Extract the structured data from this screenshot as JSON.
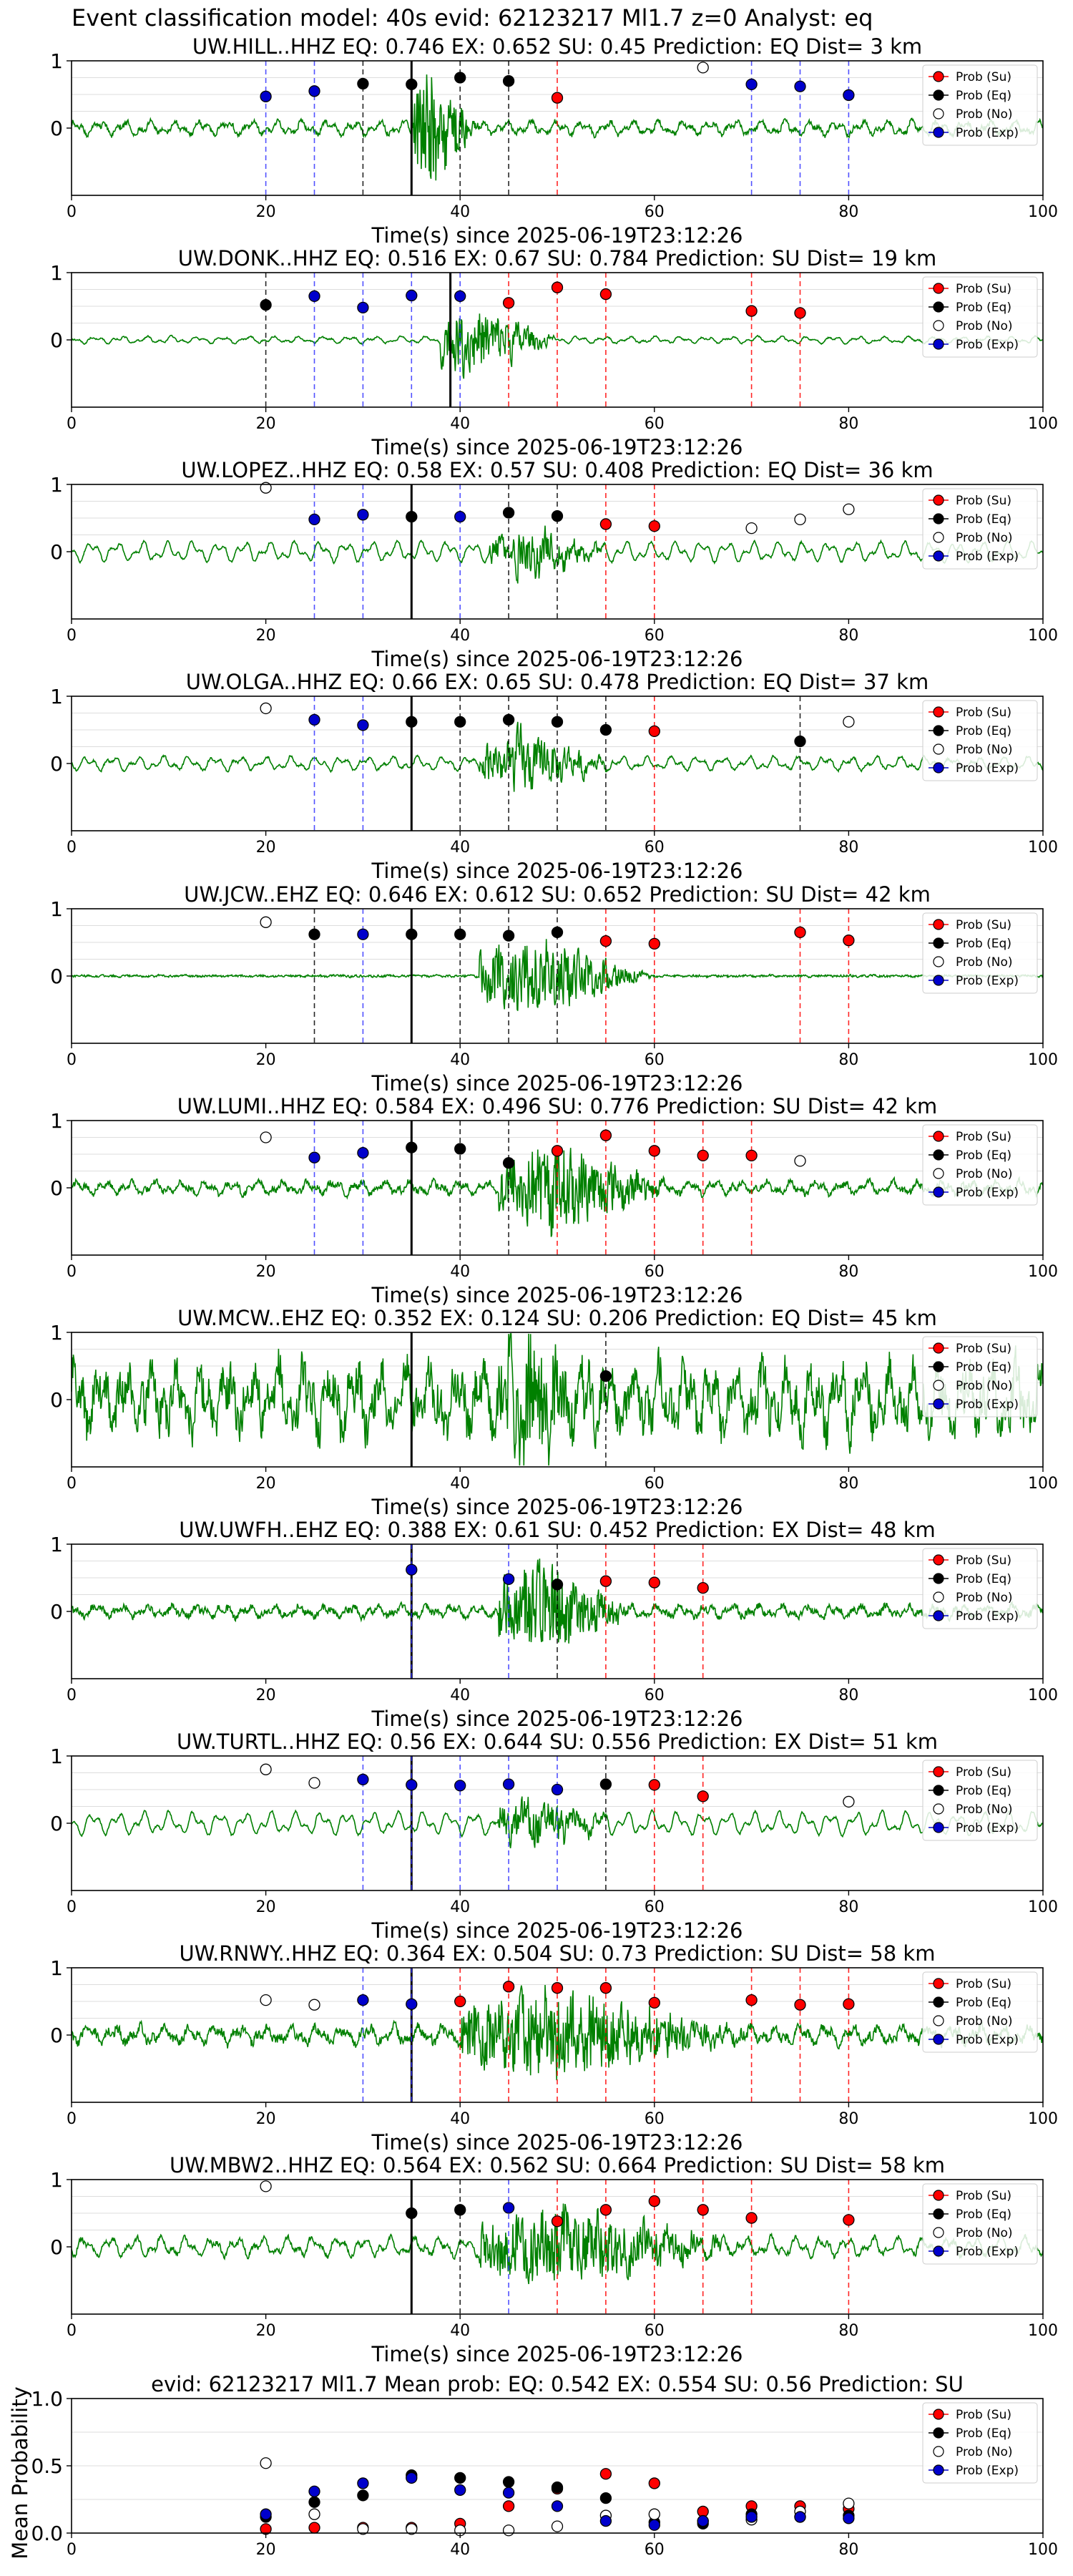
{
  "suptitle": "Event classification model: 40s evid: 62123217 Ml1.7 z=0 Analyst: eq",
  "legend_labels": [
    "Prob (Su)",
    "Prob (Eq)",
    "Prob (No)",
    "Prob (Exp)"
  ],
  "colors": {
    "su": "#ff0000",
    "eq": "#000000",
    "no": "#ffffff",
    "exp": "#0000cc",
    "trace": "#008000"
  },
  "chart_data": [
    {
      "type": "scatter",
      "title": "UW.HILL..HHZ   EQ: 0.746   EX: 0.652   SU: 0.45   Prediction: EQ    Dist= 3 km",
      "xlabel": "Time(s) since 2025-06-19T23:12:26",
      "xlim": [
        0,
        100
      ],
      "ylim": [
        -1,
        1
      ],
      "xticks": [
        0,
        20,
        40,
        60,
        80,
        100
      ],
      "yticks": [
        0,
        1
      ],
      "trace": {
        "amp": 0.12,
        "burst": [
          35,
          42
        ],
        "burst_amp": 0.95,
        "noise": 0.04,
        "smooth": 0.2,
        "seed": 1
      },
      "arrival": 35,
      "series": [
        {
          "name": "Prob (Su)",
          "x": [
            50
          ],
          "y": [
            0.45
          ]
        },
        {
          "name": "Prob (Eq)",
          "x": [
            30,
            35,
            40,
            45
          ],
          "y": [
            0.66,
            0.65,
            0.75,
            0.7
          ]
        },
        {
          "name": "Prob (No)",
          "x": [
            65
          ],
          "y": [
            0.9
          ]
        },
        {
          "name": "Prob (Exp)",
          "x": [
            20,
            25,
            70,
            75,
            80
          ],
          "y": [
            0.47,
            0.55,
            0.65,
            0.62,
            0.49
          ]
        }
      ]
    },
    {
      "type": "scatter",
      "title": "UW.DONK..HHZ   EQ: 0.516   EX: 0.67   SU: 0.784   Prediction: SU    Dist= 19 km",
      "xlabel": "Time(s) since 2025-06-19T23:12:26",
      "xlim": [
        0,
        100
      ],
      "ylim": [
        -1,
        1
      ],
      "xticks": [
        0,
        20,
        40,
        60,
        80,
        100
      ],
      "yticks": [
        0,
        1
      ],
      "trace": {
        "amp": 0.08,
        "burst": [
          38,
          50
        ],
        "burst_amp": 0.85,
        "noise": 0.02,
        "smooth": 0.9,
        "seed": 2
      },
      "arrival": 39,
      "series": [
        {
          "name": "Prob (Su)",
          "x": [
            45,
            50,
            55,
            70,
            75
          ],
          "y": [
            0.55,
            0.78,
            0.68,
            0.43,
            0.4
          ]
        },
        {
          "name": "Prob (Eq)",
          "x": [
            20
          ],
          "y": [
            0.52
          ]
        },
        {
          "name": "Prob (No)",
          "x": [],
          "y": []
        },
        {
          "name": "Prob (Exp)",
          "x": [
            25,
            30,
            35,
            40
          ],
          "y": [
            0.65,
            0.48,
            0.66,
            0.65
          ]
        }
      ]
    },
    {
      "type": "scatter",
      "title": "UW.LOPEZ..HHZ   EQ: 0.58   EX: 0.57   SU: 0.408   Prediction: EQ    Dist= 36 km",
      "xlabel": "Time(s) since 2025-06-19T23:12:26",
      "xlim": [
        0,
        100
      ],
      "ylim": [
        -1,
        1
      ],
      "xticks": [
        0,
        20,
        40,
        60,
        80,
        100
      ],
      "yticks": [
        0,
        1
      ],
      "trace": {
        "amp": 0.22,
        "burst": [
          43,
          56
        ],
        "burst_amp": 0.55,
        "noise": 0.03,
        "smooth": 0.85,
        "seed": 3
      },
      "arrival": 35,
      "series": [
        {
          "name": "Prob (Su)",
          "x": [
            55,
            60
          ],
          "y": [
            0.41,
            0.38
          ]
        },
        {
          "name": "Prob (Eq)",
          "x": [
            35,
            45,
            50
          ],
          "y": [
            0.52,
            0.58,
            0.53
          ]
        },
        {
          "name": "Prob (No)",
          "x": [
            20,
            70,
            75,
            80
          ],
          "y": [
            0.95,
            0.35,
            0.48,
            0.63
          ]
        },
        {
          "name": "Prob (Exp)",
          "x": [
            25,
            30,
            40
          ],
          "y": [
            0.48,
            0.55,
            0.52
          ]
        }
      ]
    },
    {
      "type": "scatter",
      "title": "UW.OLGA..HHZ   EQ: 0.66   EX: 0.65   SU: 0.478   Prediction: EQ    Dist= 37 km",
      "xlabel": "Time(s) since 2025-06-19T23:12:26",
      "xlim": [
        0,
        100
      ],
      "ylim": [
        -1,
        1
      ],
      "xticks": [
        0,
        20,
        40,
        60,
        80,
        100
      ],
      "yticks": [
        0,
        1
      ],
      "trace": {
        "amp": 0.15,
        "burst": [
          42,
          56
        ],
        "burst_amp": 0.65,
        "noise": 0.03,
        "smooth": 0.8,
        "seed": 4
      },
      "arrival": 35,
      "series": [
        {
          "name": "Prob (Su)",
          "x": [
            60
          ],
          "y": [
            0.48
          ]
        },
        {
          "name": "Prob (Eq)",
          "x": [
            35,
            40,
            45,
            50,
            55,
            75
          ],
          "y": [
            0.62,
            0.62,
            0.65,
            0.62,
            0.5,
            0.33
          ]
        },
        {
          "name": "Prob (No)",
          "x": [
            20,
            80
          ],
          "y": [
            0.82,
            0.62
          ]
        },
        {
          "name": "Prob (Exp)",
          "x": [
            25,
            30
          ],
          "y": [
            0.65,
            0.57
          ]
        }
      ]
    },
    {
      "type": "scatter",
      "title": "UW.JCW..EHZ   EQ: 0.646   EX: 0.612   SU: 0.652   Prediction: SU    Dist= 42 km",
      "xlabel": "Time(s) since 2025-06-19T23:12:26",
      "xlim": [
        0,
        100
      ],
      "ylim": [
        -1,
        1
      ],
      "xticks": [
        0,
        20,
        40,
        60,
        80,
        100
      ],
      "yticks": [
        0,
        1
      ],
      "trace": {
        "amp": 0.01,
        "burst": [
          42,
          60
        ],
        "burst_amp": 0.75,
        "noise": 0.02,
        "smooth": 0.5,
        "seed": 5
      },
      "arrival": 35,
      "series": [
        {
          "name": "Prob (Su)",
          "x": [
            55,
            60,
            75,
            80
          ],
          "y": [
            0.52,
            0.48,
            0.65,
            0.53
          ]
        },
        {
          "name": "Prob (Eq)",
          "x": [
            25,
            35,
            40,
            45,
            50
          ],
          "y": [
            0.62,
            0.62,
            0.62,
            0.6,
            0.65
          ]
        },
        {
          "name": "Prob (No)",
          "x": [
            20
          ],
          "y": [
            0.8
          ]
        },
        {
          "name": "Prob (Exp)",
          "x": [
            30
          ],
          "y": [
            0.62
          ]
        }
      ]
    },
    {
      "type": "scatter",
      "title": "UW.LUMI..HHZ   EQ: 0.584   EX: 0.496   SU: 0.776   Prediction: SU    Dist= 42 km",
      "xlabel": "Time(s) since 2025-06-19T23:12:26",
      "xlim": [
        0,
        100
      ],
      "ylim": [
        -1,
        1
      ],
      "xticks": [
        0,
        20,
        40,
        60,
        80,
        100
      ],
      "yticks": [
        0,
        1
      ],
      "trace": {
        "amp": 0.12,
        "burst": [
          44,
          62
        ],
        "burst_amp": 0.8,
        "noise": 0.06,
        "smooth": 0.4,
        "seed": 6
      },
      "arrival": 35,
      "series": [
        {
          "name": "Prob (Su)",
          "x": [
            50,
            55,
            60,
            65,
            70
          ],
          "y": [
            0.55,
            0.78,
            0.55,
            0.48,
            0.48
          ]
        },
        {
          "name": "Prob (Eq)",
          "x": [
            35,
            40,
            45
          ],
          "y": [
            0.6,
            0.58,
            0.37
          ]
        },
        {
          "name": "Prob (No)",
          "x": [
            20,
            75
          ],
          "y": [
            0.75,
            0.4
          ]
        },
        {
          "name": "Prob (Exp)",
          "x": [
            25,
            30
          ],
          "y": [
            0.45,
            0.52
          ]
        }
      ]
    },
    {
      "type": "scatter",
      "title": "UW.MCW..EHZ   EQ: 0.352   EX: 0.124   SU: 0.206   Prediction: EQ    Dist= 45 km",
      "xlabel": "Time(s) since 2025-06-19T23:12:26",
      "xlim": [
        0,
        100
      ],
      "ylim": [
        -1,
        1
      ],
      "xticks": [
        0,
        20,
        40,
        60,
        80,
        100
      ],
      "yticks": [
        0,
        1
      ],
      "trace": {
        "amp": 0.55,
        "burst": [
          44,
          54
        ],
        "burst_amp": 0.95,
        "noise": 0.35,
        "smooth": 0.3,
        "seed": 7
      },
      "arrival": 35,
      "series": [
        {
          "name": "Prob (Su)",
          "x": [],
          "y": []
        },
        {
          "name": "Prob (Eq)",
          "x": [
            55
          ],
          "y": [
            0.35
          ]
        },
        {
          "name": "Prob (No)",
          "x": [],
          "y": []
        },
        {
          "name": "Prob (Exp)",
          "x": [],
          "y": []
        }
      ]
    },
    {
      "type": "scatter",
      "title": "UW.UWFH..EHZ   EQ: 0.388   EX: 0.61   SU: 0.452   Prediction: EX    Dist= 48 km",
      "xlabel": "Time(s) since 2025-06-19T23:12:26",
      "xlim": [
        0,
        100
      ],
      "ylim": [
        -1,
        1
      ],
      "xticks": [
        0,
        20,
        40,
        60,
        80,
        100
      ],
      "yticks": [
        0,
        1
      ],
      "trace": {
        "amp": 0.1,
        "burst": [
          44,
          58
        ],
        "burst_amp": 0.85,
        "noise": 0.06,
        "smooth": 0.3,
        "seed": 8
      },
      "arrival": 35,
      "series": [
        {
          "name": "Prob (Su)",
          "x": [
            55,
            60,
            65
          ],
          "y": [
            0.45,
            0.43,
            0.35
          ]
        },
        {
          "name": "Prob (Eq)",
          "x": [
            50
          ],
          "y": [
            0.4
          ]
        },
        {
          "name": "Prob (No)",
          "x": [],
          "y": []
        },
        {
          "name": "Prob (Exp)",
          "x": [
            35,
            45
          ],
          "y": [
            0.62,
            0.48
          ]
        }
      ]
    },
    {
      "type": "scatter",
      "title": "UW.TURTL..HHZ   EQ: 0.56   EX: 0.644   SU: 0.556   Prediction: EX    Dist= 51 km",
      "xlabel": "Time(s) since 2025-06-19T23:12:26",
      "xlim": [
        0,
        100
      ],
      "ylim": [
        -1,
        1
      ],
      "xticks": [
        0,
        20,
        40,
        60,
        80,
        100
      ],
      "yticks": [
        0,
        1
      ],
      "trace": {
        "amp": 0.25,
        "burst": [
          44,
          56
        ],
        "burst_amp": 0.55,
        "noise": 0.03,
        "smooth": 0.85,
        "seed": 9
      },
      "arrival": 35,
      "series": [
        {
          "name": "Prob (Su)",
          "x": [
            60,
            65
          ],
          "y": [
            0.57,
            0.4
          ]
        },
        {
          "name": "Prob (Eq)",
          "x": [
            55
          ],
          "y": [
            0.58
          ]
        },
        {
          "name": "Prob (No)",
          "x": [
            20,
            25,
            80
          ],
          "y": [
            0.8,
            0.6,
            0.32
          ]
        },
        {
          "name": "Prob (Exp)",
          "x": [
            30,
            35,
            40,
            45,
            50
          ],
          "y": [
            0.65,
            0.57,
            0.56,
            0.58,
            0.5
          ]
        }
      ]
    },
    {
      "type": "scatter",
      "title": "UW.RNWY..HHZ   EQ: 0.364   EX: 0.504   SU: 0.73   Prediction: SU    Dist= 58 km",
      "xlabel": "Time(s) since 2025-06-19T23:12:26",
      "xlim": [
        0,
        100
      ],
      "ylim": [
        -1,
        1
      ],
      "xticks": [
        0,
        20,
        40,
        60,
        80,
        100
      ],
      "yticks": [
        0,
        1
      ],
      "trace": {
        "amp": 0.15,
        "burst": [
          40,
          70
        ],
        "burst_amp": 0.75,
        "noise": 0.08,
        "smooth": 0.3,
        "seed": 10
      },
      "arrival": 35,
      "series": [
        {
          "name": "Prob (Su)",
          "x": [
            40,
            45,
            50,
            55,
            60,
            70,
            75,
            80
          ],
          "y": [
            0.5,
            0.72,
            0.7,
            0.7,
            0.48,
            0.52,
            0.45,
            0.46
          ]
        },
        {
          "name": "Prob (Eq)",
          "x": [],
          "y": []
        },
        {
          "name": "Prob (No)",
          "x": [
            20,
            25
          ],
          "y": [
            0.52,
            0.45
          ]
        },
        {
          "name": "Prob (Exp)",
          "x": [
            30,
            35
          ],
          "y": [
            0.52,
            0.46
          ]
        }
      ]
    },
    {
      "type": "scatter",
      "title": "UW.MBW2..HHZ   EQ: 0.564   EX: 0.562   SU: 0.664   Prediction: SU    Dist= 58 km",
      "xlabel": "Time(s) since 2025-06-19T23:12:26",
      "xlim": [
        0,
        100
      ],
      "ylim": [
        -1,
        1
      ],
      "xticks": [
        0,
        20,
        40,
        60,
        80,
        100
      ],
      "yticks": [
        0,
        1
      ],
      "trace": {
        "amp": 0.18,
        "burst": [
          42,
          70
        ],
        "burst_amp": 0.7,
        "noise": 0.05,
        "smooth": 0.5,
        "seed": 11
      },
      "arrival": 35,
      "series": [
        {
          "name": "Prob (Su)",
          "x": [
            50,
            55,
            60,
            65,
            70,
            80
          ],
          "y": [
            0.38,
            0.55,
            0.68,
            0.55,
            0.43,
            0.4
          ]
        },
        {
          "name": "Prob (Eq)",
          "x": [
            35,
            40
          ],
          "y": [
            0.5,
            0.55
          ]
        },
        {
          "name": "Prob (No)",
          "x": [
            20
          ],
          "y": [
            0.9
          ]
        },
        {
          "name": "Prob (Exp)",
          "x": [
            45
          ],
          "y": [
            0.58
          ]
        }
      ]
    },
    {
      "type": "scatter",
      "title": "evid: 62123217  Ml1.7   Mean prob:   EQ: 0.542  EX: 0.554  SU: 0.56   Prediction: SU",
      "xlabel": "",
      "ylabel": "Mean Probability",
      "xlim": [
        0,
        100
      ],
      "ylim": [
        0,
        1
      ],
      "xticks": [
        0,
        20,
        40,
        60,
        80,
        100
      ],
      "yticks": [
        0.0,
        0.5,
        1.0
      ],
      "series": [
        {
          "name": "Prob (Su)",
          "x": [
            20,
            25,
            30,
            35,
            40,
            45,
            50,
            55,
            60,
            65,
            70,
            75,
            80
          ],
          "y": [
            0.03,
            0.04,
            0.04,
            0.04,
            0.07,
            0.2,
            0.33,
            0.44,
            0.37,
            0.16,
            0.2,
            0.2,
            0.18
          ]
        },
        {
          "name": "Prob (Eq)",
          "x": [
            20,
            25,
            30,
            35,
            40,
            45,
            50,
            55,
            60,
            65,
            70,
            75,
            80
          ],
          "y": [
            0.12,
            0.23,
            0.28,
            0.43,
            0.41,
            0.38,
            0.34,
            0.26,
            0.08,
            0.07,
            0.14,
            0.12,
            0.13
          ]
        },
        {
          "name": "Prob (No)",
          "x": [
            20,
            25,
            30,
            35,
            40,
            45,
            50,
            55,
            60,
            65,
            70,
            75,
            80
          ],
          "y": [
            0.52,
            0.14,
            0.03,
            0.03,
            0.02,
            0.02,
            0.05,
            0.13,
            0.14,
            0.09,
            0.1,
            0.16,
            0.22
          ]
        },
        {
          "name": "Prob (Exp)",
          "x": [
            20,
            25,
            30,
            35,
            40,
            45,
            50,
            55,
            60,
            65,
            70,
            75,
            80
          ],
          "y": [
            0.14,
            0.31,
            0.37,
            0.41,
            0.32,
            0.3,
            0.2,
            0.09,
            0.06,
            0.09,
            0.12,
            0.12,
            0.11
          ]
        }
      ]
    }
  ]
}
